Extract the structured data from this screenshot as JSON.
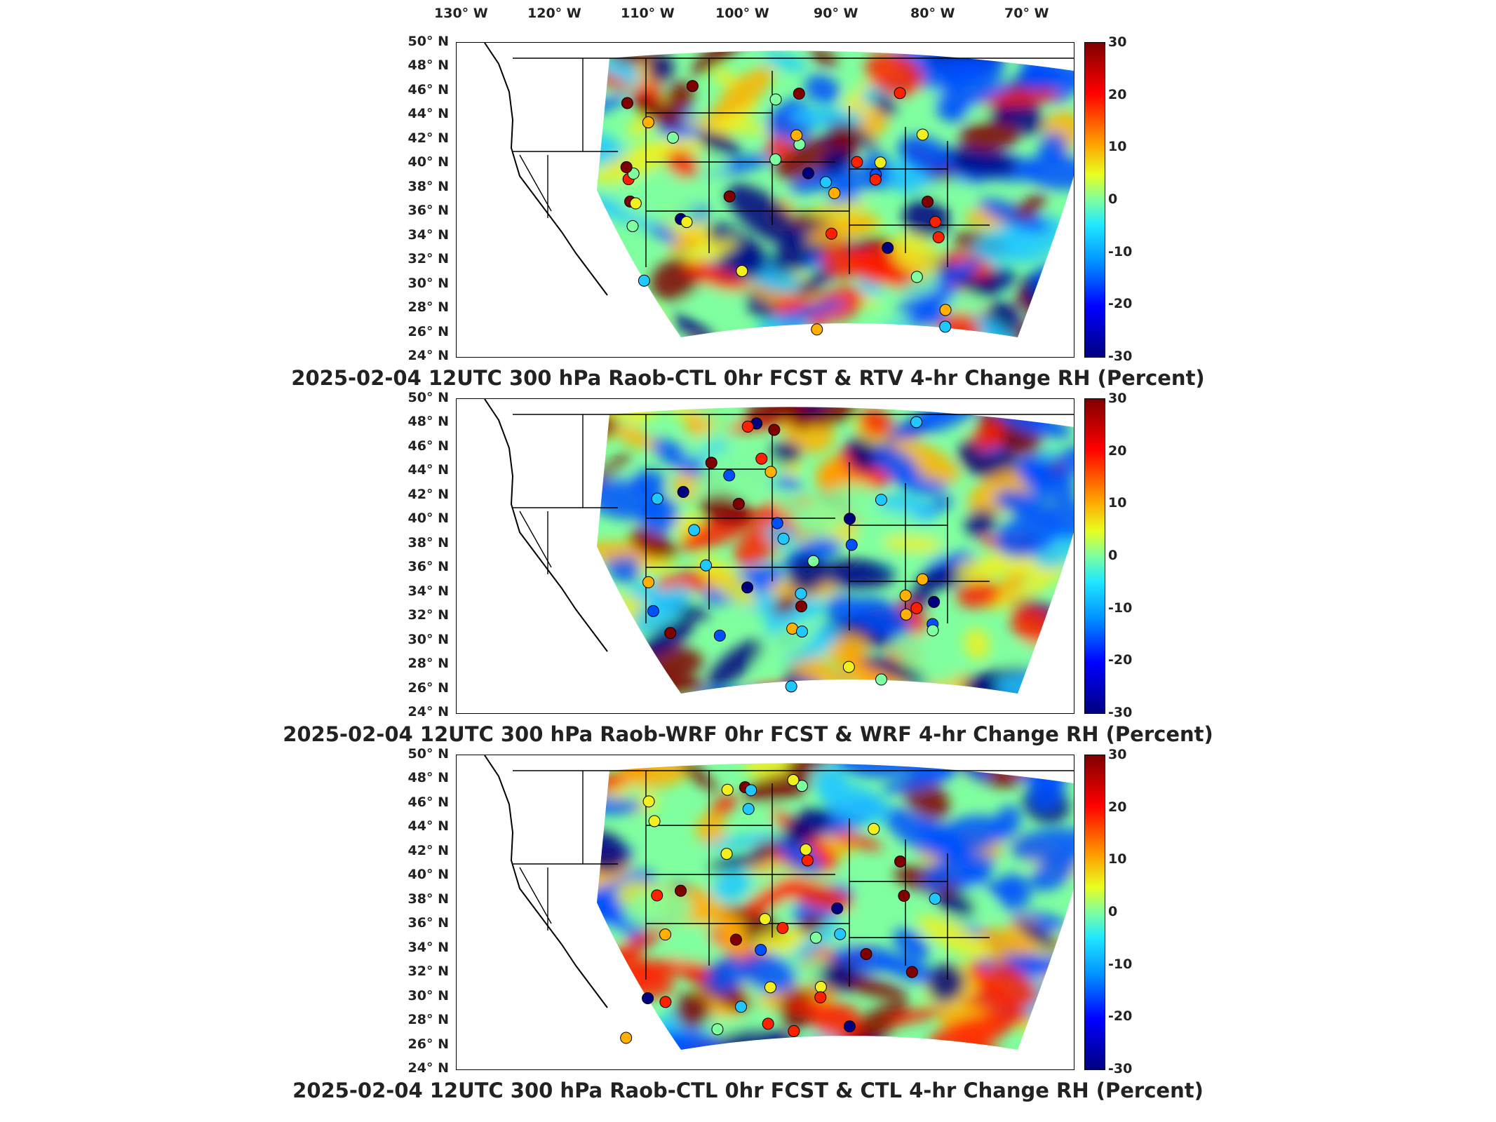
{
  "lon_labels": [
    "130° W",
    "120° W",
    "110° W",
    "100° W",
    "90° W",
    "80° W",
    "70° W"
  ],
  "lat_labels": [
    "50° N",
    "48° N",
    "46° N",
    "44° N",
    "42° N",
    "40° N",
    "38° N",
    "36° N",
    "34° N",
    "32° N",
    "30° N",
    "28° N",
    "26° N",
    "24° N"
  ],
  "colorbar_ticks": [
    "30",
    "20",
    "10",
    "0",
    "-10",
    "-20",
    "-30"
  ],
  "colors": {
    "positive_high": "#7f0000",
    "positive": "#ff2000",
    "warm": "#ffb000",
    "neutral_yellow": "#f0f020",
    "neutral": "#80ffa0",
    "cool": "#20c8ff",
    "negative": "#0050ff",
    "negative_high": "#00007f"
  },
  "panels": [
    {
      "title": "2025-02-04 12UTC 300 hPa Raob-CTL 0hr FCST & RTV 4-hr Change RH (Percent)"
    },
    {
      "title": "2025-02-04 12UTC 300 hPa Raob-WRF 0hr FCST & WRF 4-hr Change RH (Percent)"
    },
    {
      "title": "2025-02-04 12UTC 300 hPa Raob-CTL 0hr FCST & CTL 4-hr Change RH (Percent)"
    }
  ]
}
